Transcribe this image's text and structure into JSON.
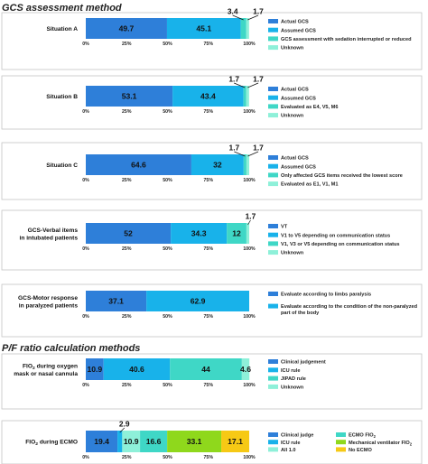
{
  "headings": [
    "GCS assessment method",
    "P/F ratio calculation methods"
  ],
  "colors": {
    "blue_dark": "#2e7fd9",
    "blue_light": "#18b2ea",
    "teal": "#3fd7c6",
    "mint": "#8ef0d9",
    "green": "#8fd81c",
    "yellow": "#f6c915"
  },
  "chart_data": [
    {
      "type": "bar",
      "orientation": "horizontal",
      "stacked": true,
      "category": "Situation A",
      "xlim": [
        0,
        100
      ],
      "ticks": [
        "0%",
        "25%",
        "50%",
        "75%",
        "100%"
      ],
      "series": [
        {
          "name": "Actual GCS",
          "value": 49.7,
          "label": "49.7"
        },
        {
          "name": "Assumed GCS",
          "value": 45.1,
          "label": "45.1"
        },
        {
          "name": "GCS assessment with sedation interrupted or reduced",
          "value": 3.4,
          "label": "3.4"
        },
        {
          "name": "Unknown",
          "value": 1.7,
          "label": "1.7"
        }
      ],
      "legend": "right"
    },
    {
      "type": "bar",
      "orientation": "horizontal",
      "stacked": true,
      "category": "Situation B",
      "xlim": [
        0,
        100
      ],
      "ticks": [
        "0%",
        "25%",
        "50%",
        "75%",
        "100%"
      ],
      "series": [
        {
          "name": "Actual GCS",
          "value": 53.1,
          "label": "53.1"
        },
        {
          "name": "Assumed GCS",
          "value": 43.4,
          "label": "43.4"
        },
        {
          "name": "Evaluated as E4, V5, M6",
          "value": 1.7,
          "label": "1.7"
        },
        {
          "name": "Unknown",
          "value": 1.7,
          "label": "1.7"
        }
      ],
      "legend": "right"
    },
    {
      "type": "bar",
      "orientation": "horizontal",
      "stacked": true,
      "category": "Situation C",
      "xlim": [
        0,
        100
      ],
      "ticks": [
        "0%",
        "25%",
        "50%",
        "75%",
        "100%"
      ],
      "series": [
        {
          "name": "Actual GCS",
          "value": 64.6,
          "label": "64.6"
        },
        {
          "name": "Assumed GCS",
          "value": 32,
          "label": "32"
        },
        {
          "name": "Only affected GCS items received the lowest score",
          "value": 1.7,
          "label": "1.7"
        },
        {
          "name": "Evaluated as E1, V1, M1",
          "value": 1.7,
          "label": "1.7"
        }
      ],
      "legend": "right"
    },
    {
      "type": "bar",
      "orientation": "horizontal",
      "stacked": true,
      "category": "GCS-Verbal items in intubated patients",
      "category_lines": [
        "GCS-Verbal items",
        "in intubated patients"
      ],
      "xlim": [
        0,
        100
      ],
      "ticks": [
        "0%",
        "25%",
        "50%",
        "75%",
        "100%"
      ],
      "series": [
        {
          "name": "VT",
          "value": 52,
          "label": "52"
        },
        {
          "name": "V1 to V5 depending on communication status",
          "value": 34.3,
          "label": "34.3"
        },
        {
          "name": "V1, V3 or V5 depending on communication status",
          "value": 12,
          "label": "12"
        },
        {
          "name": "Unknown",
          "value": 1.7,
          "label": "1.7"
        }
      ],
      "legend": "right"
    },
    {
      "type": "bar",
      "orientation": "horizontal",
      "stacked": true,
      "category": "GCS-Motor response in paralyzed patients",
      "category_lines": [
        "GCS-Motor response",
        "in paralyzed patients"
      ],
      "xlim": [
        0,
        100
      ],
      "ticks": [
        "0%",
        "25%",
        "50%",
        "75%",
        "100%"
      ],
      "series": [
        {
          "name": "Evaluate according to limbs paralysis",
          "value": 37.1,
          "label": "37.1"
        },
        {
          "name": "Evaluate according to the condition of the non-paralyzed part of the body",
          "name_lines": [
            "Evaluate according to the condition of the non-paralyzed",
            "part of the body"
          ],
          "value": 62.9,
          "label": "62.9"
        }
      ],
      "legend": "right"
    },
    {
      "type": "bar",
      "orientation": "horizontal",
      "stacked": true,
      "category": "FIO2 during oxygen mask or nasal cannula",
      "category_lines": [
        "FIO2 during oxygen",
        "mask or nasal cannula"
      ],
      "xlim": [
        0,
        100
      ],
      "ticks": [
        "0%",
        "25%",
        "50%",
        "75%",
        "100%"
      ],
      "series": [
        {
          "name": "Clinical judgement",
          "value": 10.9,
          "label": "10.9"
        },
        {
          "name": "ICU rule",
          "value": 40.6,
          "label": "40.6"
        },
        {
          "name": "JIPAD rule",
          "value": 44,
          "label": "44"
        },
        {
          "name": "Unknown",
          "value": 4.6,
          "label": "4.6"
        }
      ],
      "legend": "right"
    },
    {
      "type": "bar",
      "orientation": "horizontal",
      "stacked": true,
      "category": "FIO2 during ECMO",
      "xlim": [
        0,
        100
      ],
      "ticks": [
        "0%",
        "25%",
        "50%",
        "75%",
        "100%"
      ],
      "series": [
        {
          "name": "Clinical judge",
          "value": 19.4,
          "label": "19.4"
        },
        {
          "name": "ICU rule",
          "value": 2.9,
          "label": "2.9"
        },
        {
          "name": "All 1.0",
          "value": 10.9,
          "label": "10.9"
        },
        {
          "name": "ECMO FIO2",
          "value": 16.6,
          "label": "16.6"
        },
        {
          "name": "Mechanical ventilator FIO2",
          "value": 33.1,
          "label": "33.1"
        },
        {
          "name": "No ECMO",
          "value": 17.1,
          "label": "17.1"
        }
      ],
      "legend": "right-two-columns"
    }
  ]
}
